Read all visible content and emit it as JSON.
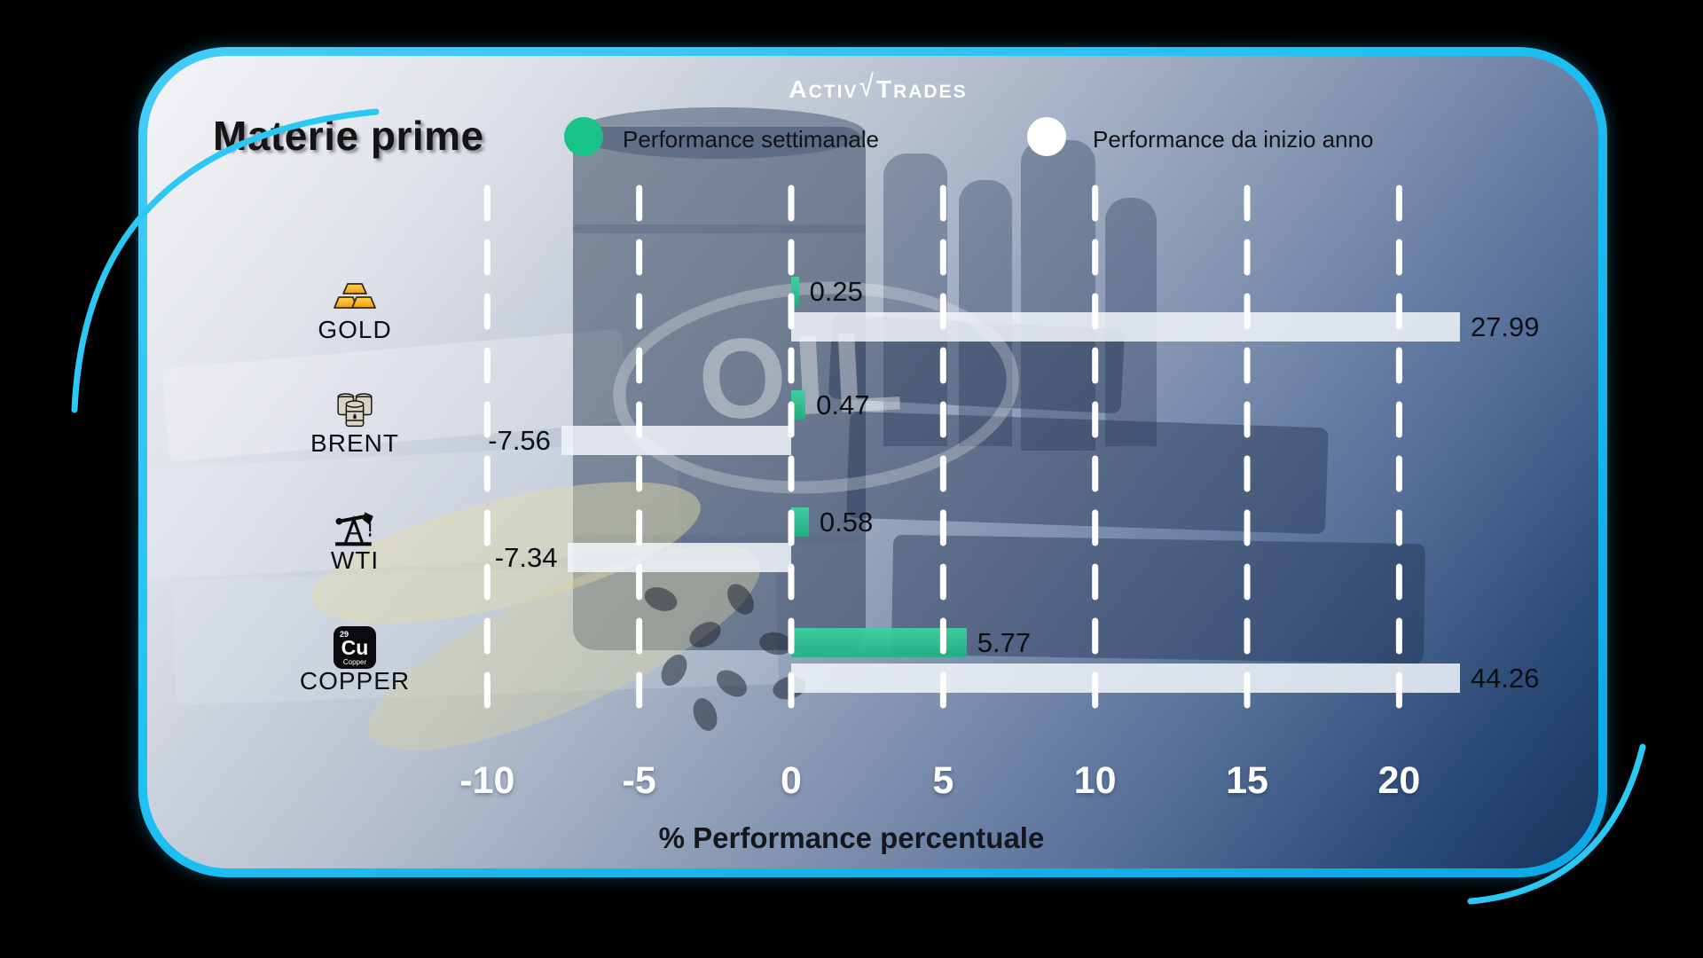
{
  "brand": {
    "name_part1": "Activ",
    "name_part2": "Trades"
  },
  "header": {
    "title": "Materie prime"
  },
  "legend": [
    {
      "label": "Performance settimanale",
      "color": "#1fc08a"
    },
    {
      "label": "Performance da inizio anno",
      "color": "#ffffff"
    }
  ],
  "decor": {
    "oil_text": "OIL"
  },
  "copper_tile": {
    "number": "29",
    "symbol": "Cu",
    "name": "Copper"
  },
  "chart_data": {
    "type": "bar",
    "orientation": "horizontal",
    "title": "Materie prime",
    "categories": [
      "GOLD",
      "BRENT",
      "WTI",
      "COPPER"
    ],
    "icons": [
      "gold-bars-icon",
      "oil-barrels-icon",
      "oil-pump-icon",
      "copper-element-icon"
    ],
    "series": [
      {
        "name": "Performance settimanale",
        "color": "#1fc08a",
        "values": [
          0.25,
          0.47,
          0.58,
          5.77
        ]
      },
      {
        "name": "Performance da inizio anno",
        "color": "#ffffff",
        "values": [
          27.99,
          -7.56,
          -7.34,
          44.26
        ]
      }
    ],
    "ticks": [
      -10,
      -5,
      0,
      5,
      10,
      15,
      20
    ],
    "xlim": [
      -12.5,
      22.5
    ],
    "xlabel": "% Performance percentuale",
    "grid": "dashed-vertical-white",
    "legend_position": "top",
    "value_label_decimals": 2
  }
}
